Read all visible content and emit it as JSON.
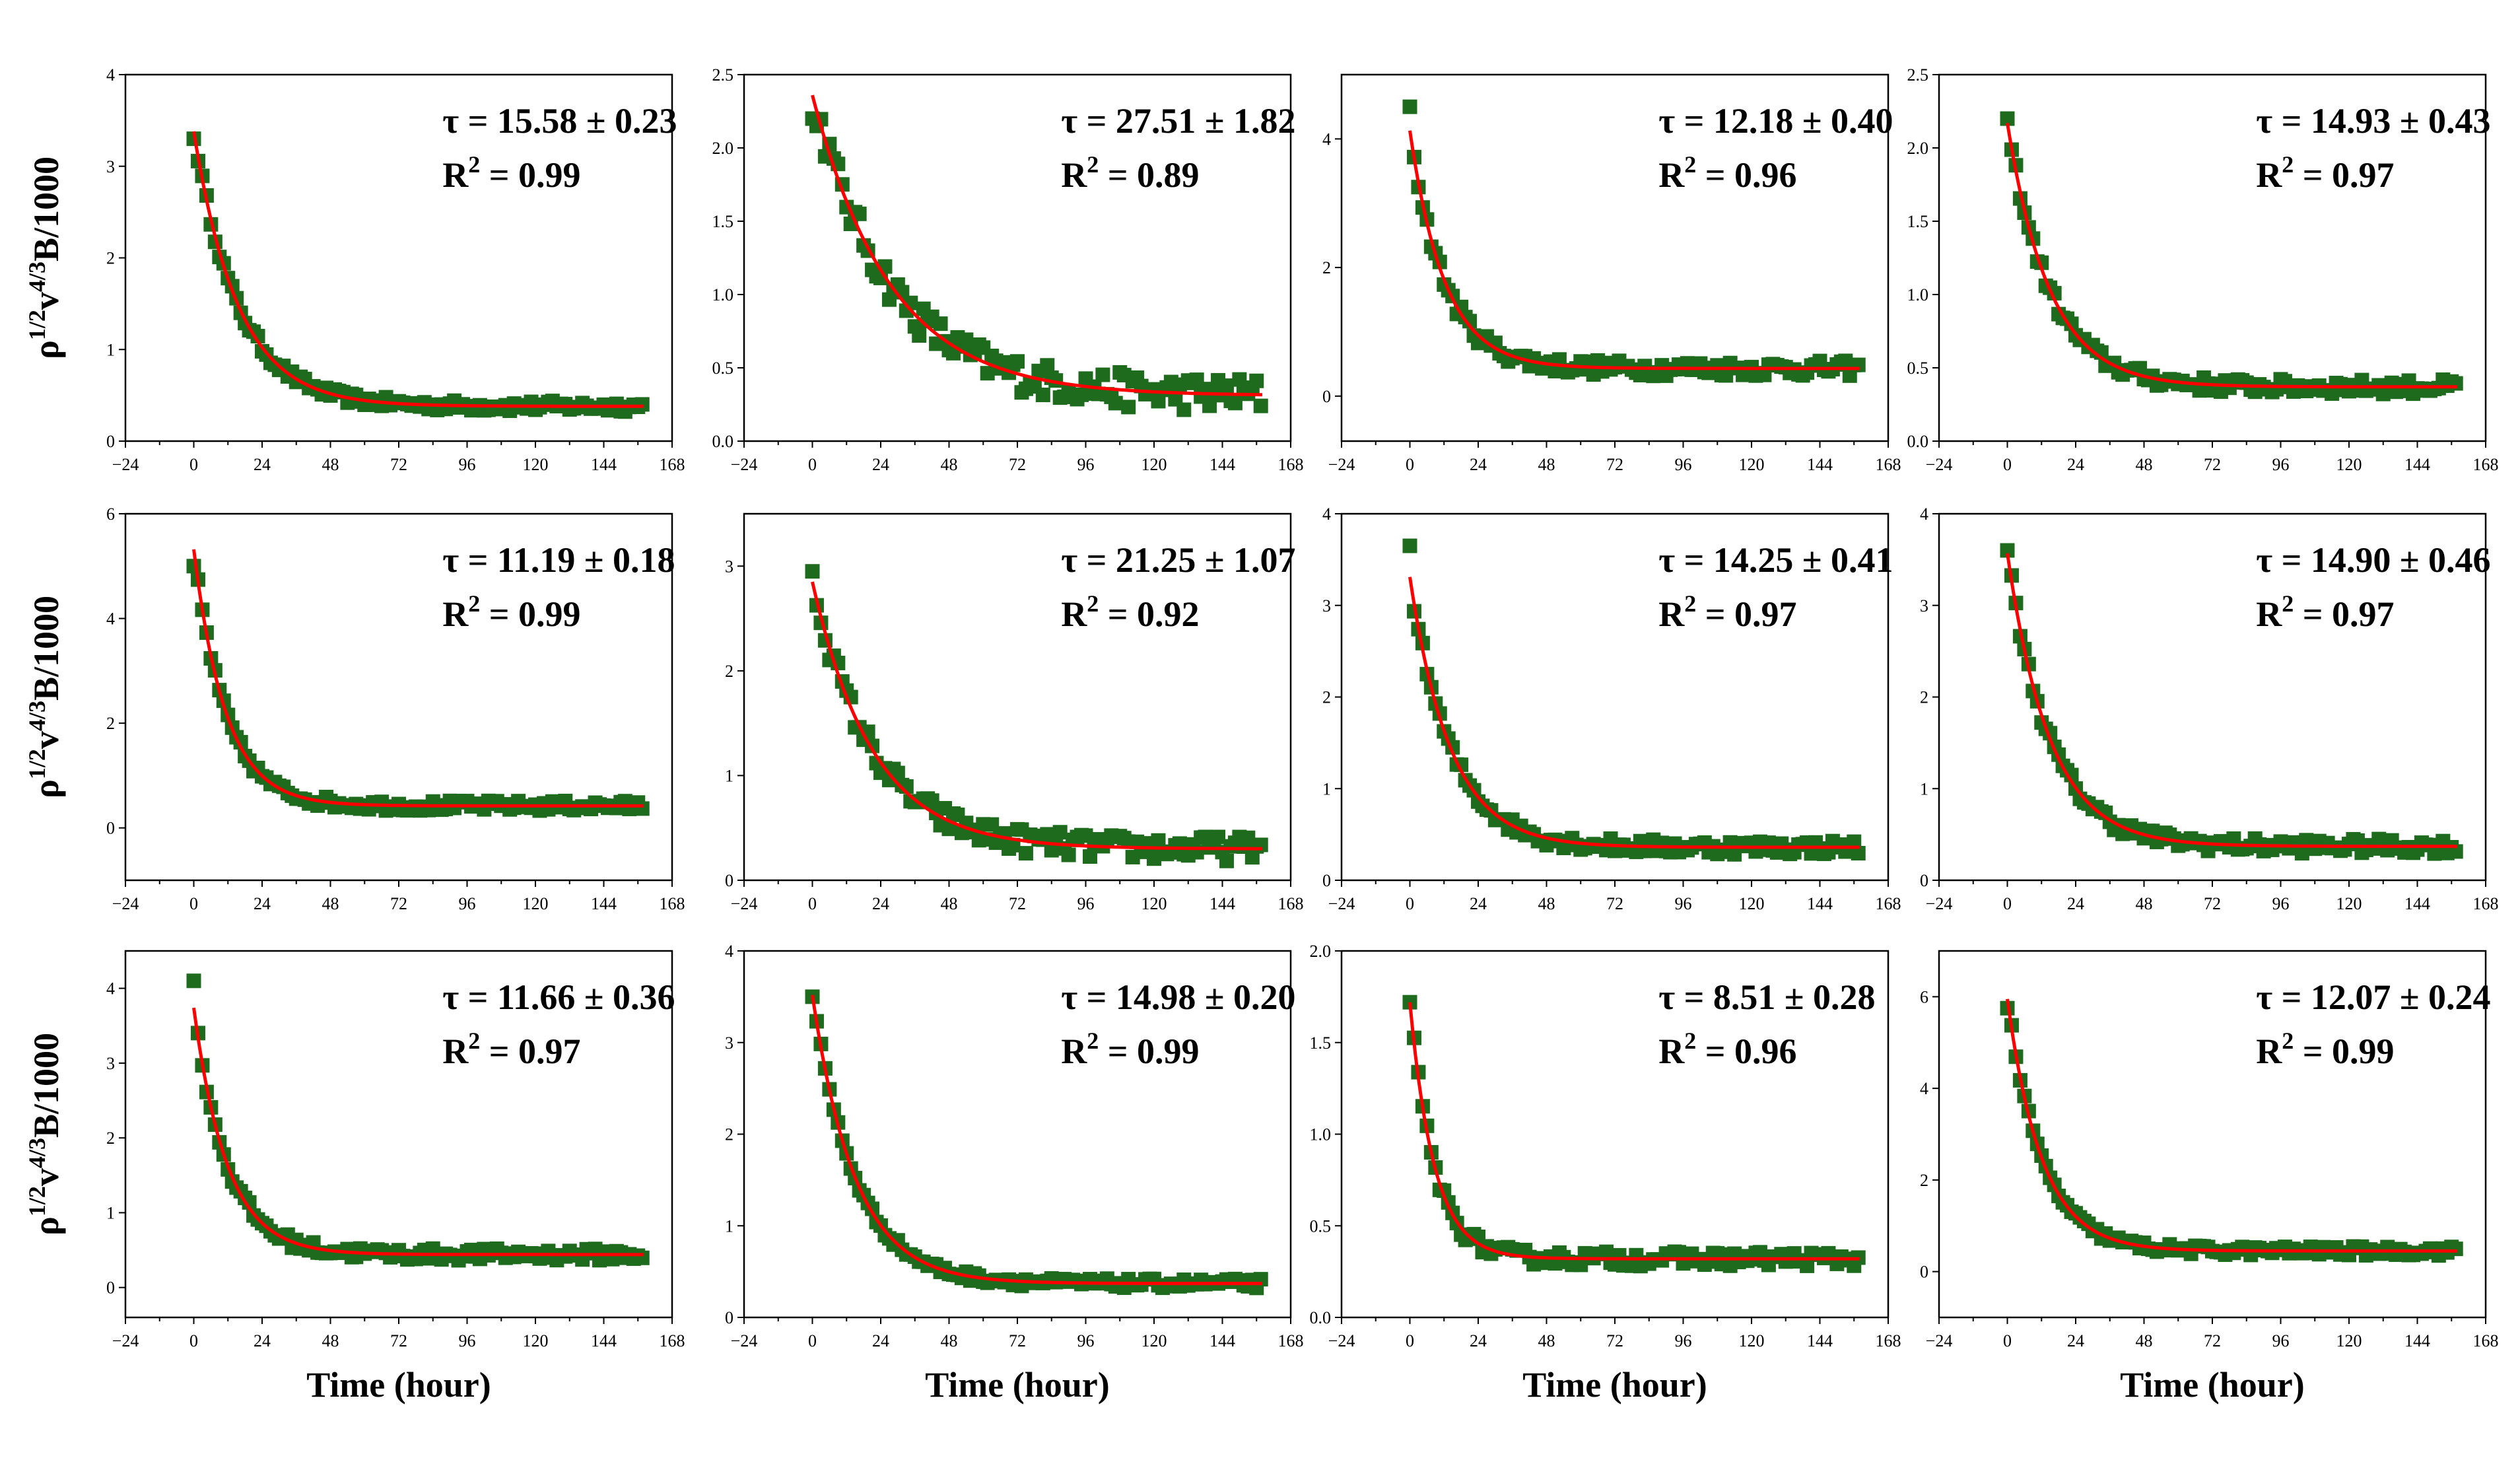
{
  "figure": {
    "x_axis_label": "Time (hour)",
    "y_axis_label_parts": [
      "ρ",
      "1/2",
      "v",
      "4/3",
      "B/1000"
    ],
    "x_ticks": [
      "−24",
      "0",
      "24",
      "48",
      "72",
      "96",
      "120",
      "144",
      "168"
    ],
    "colors": {
      "data": "#1e6b1e",
      "fit": "#ff0000",
      "axes": "#000000"
    },
    "marker": "square-filled",
    "line": "exponential-fit"
  },
  "chart_data": [
    {
      "type": "scatter",
      "title": "",
      "xlim": [
        -24,
        168
      ],
      "ylim": [
        0,
        4
      ],
      "yticks": [
        "0",
        "1",
        "2",
        "3",
        "4"
      ],
      "tau": 15.58,
      "tau_label": "τ = 15.58 ± 0.23",
      "r2_label": "R",
      "r2_value": " = 0.99",
      "fit": {
        "A": 3.0,
        "baseline": 0.38
      },
      "y0": 3.3,
      "noise": 0.06
    },
    {
      "type": "scatter",
      "title": "",
      "xlim": [
        -24,
        168
      ],
      "ylim": [
        0,
        2.5
      ],
      "yticks": [
        "0.0",
        "0.5",
        "1.0",
        "1.5",
        "2.0",
        "2.5"
      ],
      "tau": 27.51,
      "tau_label": "τ = 27.51 ± 1.82",
      "r2_label": "R",
      "r2_value": " = 0.89",
      "fit": {
        "A": 2.05,
        "baseline": 0.31
      },
      "y0": 2.2,
      "noise": 0.12
    },
    {
      "type": "scatter",
      "title": "",
      "xlim": [
        -24,
        168
      ],
      "ylim": [
        -0.7,
        5
      ],
      "yticks": [
        "0",
        "2",
        "4"
      ],
      "tau": 12.18,
      "tau_label": "τ = 12.18 ± 0.40",
      "r2_label": "R",
      "r2_value": " = 0.96",
      "fit": {
        "A": 3.7,
        "baseline": 0.43
      },
      "y0": 4.5,
      "noise": 0.12
    },
    {
      "type": "scatter",
      "title": "",
      "xlim": [
        -24,
        168
      ],
      "ylim": [
        0,
        2.5
      ],
      "yticks": [
        "0.0",
        "0.5",
        "1.0",
        "1.5",
        "2.0",
        "2.5"
      ],
      "tau": 14.93,
      "tau_label": "τ = 14.93 ± 0.43",
      "r2_label": "R",
      "r2_value": " = 0.97",
      "fit": {
        "A": 1.8,
        "baseline": 0.37
      },
      "y0": 2.2,
      "noise": 0.05
    },
    {
      "type": "scatter",
      "title": "",
      "xlim": [
        -24,
        168
      ],
      "ylim": [
        -1,
        6
      ],
      "yticks": [
        "0",
        "2",
        "4",
        "6"
      ],
      "tau": 11.19,
      "tau_label": "τ = 11.19 ± 0.18",
      "r2_label": "R",
      "r2_value": " = 0.99",
      "fit": {
        "A": 4.9,
        "baseline": 0.42
      },
      "y0": 5.0,
      "noise": 0.1
    },
    {
      "type": "scatter",
      "title": "",
      "xlim": [
        -24,
        168
      ],
      "ylim": [
        0,
        3.5
      ],
      "yticks": [
        "0",
        "1",
        "2",
        "3"
      ],
      "tau": 21.25,
      "tau_label": "τ = 21.25 ± 1.07",
      "r2_label": "R",
      "r2_value": " = 0.92",
      "fit": {
        "A": 2.55,
        "baseline": 0.3
      },
      "y0": 2.95,
      "noise": 0.12
    },
    {
      "type": "scatter",
      "title": "",
      "xlim": [
        -24,
        168
      ],
      "ylim": [
        0,
        4
      ],
      "yticks": [
        "0",
        "1",
        "2",
        "3",
        "4"
      ],
      "tau": 14.25,
      "tau_label": "τ = 14.25 ± 0.41",
      "r2_label": "R",
      "r2_value": " = 0.97",
      "fit": {
        "A": 2.95,
        "baseline": 0.36
      },
      "y0": 3.65,
      "noise": 0.08
    },
    {
      "type": "scatter",
      "title": "",
      "xlim": [
        -24,
        168
      ],
      "ylim": [
        0,
        4
      ],
      "yticks": [
        "0",
        "1",
        "2",
        "3",
        "4"
      ],
      "tau": 14.9,
      "tau_label": "τ = 14.90 ± 0.46",
      "r2_label": "R",
      "r2_value": " = 0.97",
      "fit": {
        "A": 3.2,
        "baseline": 0.37
      },
      "y0": 3.6,
      "noise": 0.08
    },
    {
      "type": "scatter",
      "title": "",
      "xlim": [
        -24,
        168
      ],
      "ylim": [
        -0.4,
        4.5
      ],
      "yticks": [
        "0",
        "1",
        "2",
        "3",
        "4"
      ],
      "tau": 11.66,
      "tau_label": "τ = 11.66 ± 0.36",
      "r2_label": "R",
      "r2_value": " = 0.97",
      "fit": {
        "A": 3.3,
        "baseline": 0.44
      },
      "y0": 4.1,
      "noise": 0.08
    },
    {
      "type": "scatter",
      "title": "",
      "xlim": [
        -24,
        168
      ],
      "ylim": [
        0,
        4
      ],
      "yticks": [
        "0",
        "1",
        "2",
        "3",
        "4"
      ],
      "tau": 14.98,
      "tau_label": "τ = 14.98 ± 0.20",
      "r2_label": "R",
      "r2_value": " = 0.99",
      "fit": {
        "A": 3.15,
        "baseline": 0.37
      },
      "y0": 3.5,
      "noise": 0.05
    },
    {
      "type": "scatter",
      "title": "",
      "xlim": [
        -24,
        168
      ],
      "ylim": [
        0,
        2.0
      ],
      "yticks": [
        "0.0",
        "0.5",
        "1.0",
        "1.5",
        "2.0"
      ],
      "tau": 8.51,
      "tau_label": "τ = 8.51 ± 0.28",
      "r2_label": "R",
      "r2_value": " = 0.96",
      "fit": {
        "A": 1.4,
        "baseline": 0.32
      },
      "y0": 1.72,
      "noise": 0.04
    },
    {
      "type": "scatter",
      "title": "",
      "xlim": [
        -24,
        168
      ],
      "ylim": [
        -1,
        7
      ],
      "yticks": [
        "0",
        "2",
        "4",
        "6"
      ],
      "tau": 12.07,
      "tau_label": "τ = 12.07 ± 0.24",
      "r2_label": "R",
      "r2_value": " = 0.99",
      "fit": {
        "A": 5.5,
        "baseline": 0.45
      },
      "y0": 5.75,
      "noise": 0.1
    }
  ]
}
